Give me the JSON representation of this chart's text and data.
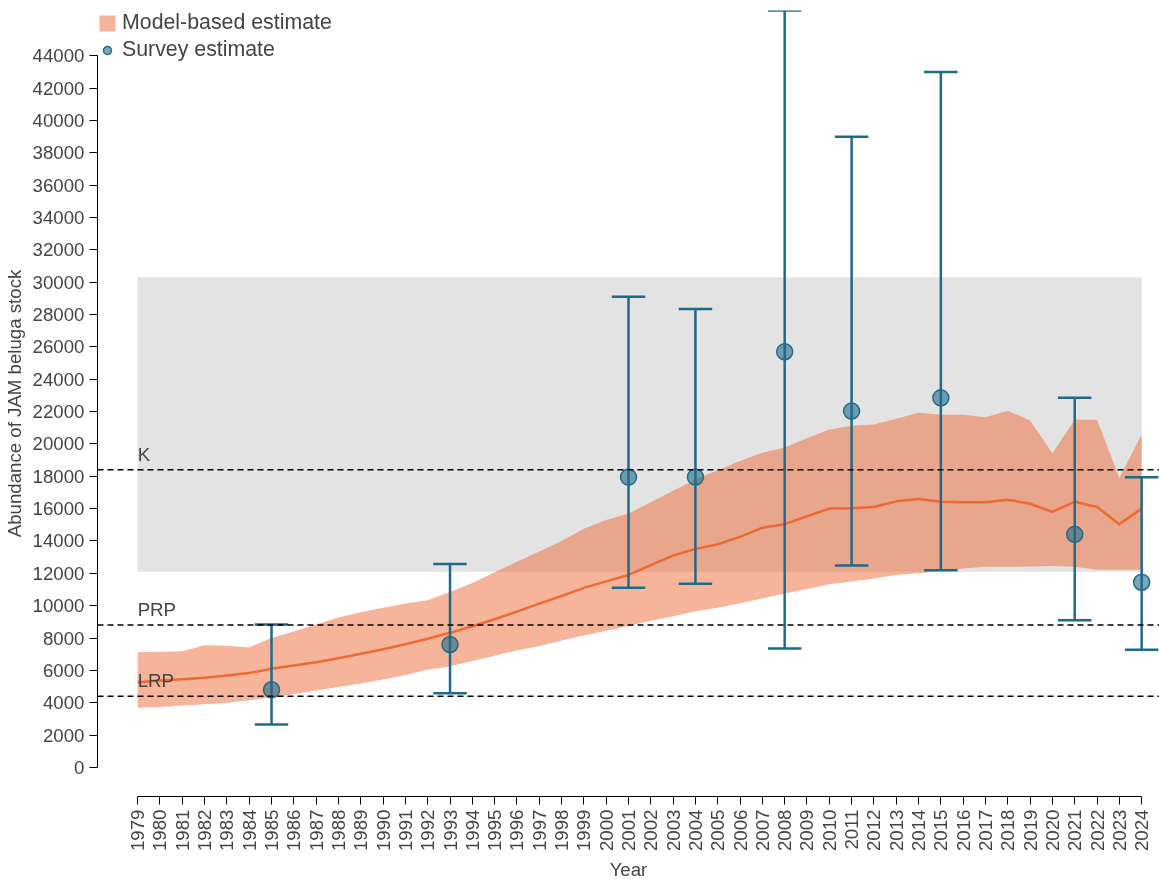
{
  "chart_data": {
    "type": "line",
    "xlabel": "Year",
    "ylabel": "Abundance of JAM beluga stock",
    "xlim": [
      1977.2,
      2024.8
    ],
    "ylim": [
      -1800,
      46800
    ],
    "xticks": [
      1979,
      1980,
      1981,
      1982,
      1983,
      1984,
      1985,
      1986,
      1987,
      1988,
      1989,
      1990,
      1991,
      1992,
      1993,
      1994,
      1995,
      1996,
      1997,
      1998,
      1999,
      2000,
      2001,
      2002,
      2003,
      2004,
      2005,
      2006,
      2007,
      2008,
      2009,
      2010,
      2011,
      2012,
      2013,
      2014,
      2015,
      2016,
      2017,
      2018,
      2019,
      2020,
      2021,
      2022,
      2023,
      2024
    ],
    "yticks": [
      0,
      2000,
      4000,
      6000,
      8000,
      10000,
      12000,
      14000,
      16000,
      18000,
      20000,
      22000,
      24000,
      26000,
      28000,
      30000,
      32000,
      34000,
      36000,
      38000,
      40000,
      42000,
      44000
    ],
    "grid": false,
    "legend": "top left",
    "bands": [
      {
        "axis": "y",
        "from": 12100,
        "to": 30300,
        "color": "#e3e3e3"
      }
    ],
    "ref_lines": [
      {
        "axis": "y",
        "value": 18400,
        "label": "K",
        "line_style": "dashed",
        "color": "#000000"
      },
      {
        "axis": "y",
        "value": 8800,
        "label": "PRP",
        "line_style": "dashed",
        "color": "#000000"
      },
      {
        "axis": "y",
        "value": 4400,
        "label": "LRP",
        "line_style": "dashed",
        "color": "#000000"
      }
    ],
    "series": [
      {
        "name": "Model-based estimate",
        "color": "#ee6a35",
        "line_style": "solid",
        "marker": "none",
        "x": [
          1979,
          1980,
          1981,
          1982,
          1983,
          1984,
          1985,
          1986,
          1987,
          1988,
          1989,
          1990,
          1991,
          1992,
          1993,
          1994,
          1995,
          1996,
          1997,
          1998,
          1999,
          2000,
          2001,
          2002,
          2003,
          2004,
          2005,
          2006,
          2007,
          2008,
          2009,
          2010,
          2011,
          2012,
          2013,
          2014,
          2015,
          2016,
          2017,
          2018,
          2019,
          2020,
          2021,
          2022,
          2023,
          2024
        ],
        "values": [
          5270,
          5380,
          5450,
          5550,
          5680,
          5830,
          6100,
          6300,
          6500,
          6750,
          7030,
          7300,
          7610,
          7950,
          8320,
          8730,
          9160,
          9630,
          10130,
          10600,
          11100,
          11500,
          11900,
          12500,
          13100,
          13500,
          13800,
          14250,
          14820,
          15040,
          15530,
          16000,
          16020,
          16100,
          16450,
          16600,
          16430,
          16400,
          16400,
          16550,
          16300,
          15800,
          16430,
          16100,
          15040,
          16000
        ],
        "lower": [
          3680,
          3740,
          3830,
          3900,
          4000,
          4150,
          4320,
          4540,
          4750,
          4970,
          5180,
          5440,
          5720,
          6040,
          6260,
          6580,
          6900,
          7230,
          7500,
          7850,
          8150,
          8450,
          8750,
          9070,
          9350,
          9650,
          9870,
          10150,
          10450,
          10750,
          11030,
          11330,
          11500,
          11680,
          11900,
          12000,
          12150,
          12300,
          12400,
          12400,
          12420,
          12450,
          12400,
          12220,
          12220,
          12220
        ],
        "upper": [
          7120,
          7150,
          7180,
          7550,
          7520,
          7420,
          8000,
          8400,
          8830,
          9270,
          9600,
          9870,
          10130,
          10340,
          10840,
          11400,
          12060,
          12710,
          13350,
          14000,
          14760,
          15300,
          15700,
          16400,
          17100,
          17800,
          18380,
          18950,
          19450,
          19780,
          20350,
          20900,
          21130,
          21200,
          21550,
          21930,
          21800,
          21800,
          21650,
          22050,
          21450,
          19430,
          21500,
          21500,
          17900,
          20580
        ]
      },
      {
        "type": "scatter",
        "name": "Survey estimate",
        "color": "#1f6a8a",
        "marker": "circle",
        "x": [
          1985,
          1993,
          2001,
          2004,
          2008,
          2011,
          2015,
          2021,
          2024
        ],
        "values": [
          4800,
          7600,
          17950,
          17950,
          25700,
          22030,
          22850,
          14410,
          11450
        ],
        "errors": [
          [
            2650,
            8840
          ],
          [
            4580,
            12580
          ],
          [
            11100,
            29100
          ],
          [
            11350,
            28350
          ],
          [
            7350,
            46800
          ],
          [
            12480,
            39000
          ],
          [
            12190,
            43000
          ],
          [
            9100,
            22850
          ],
          [
            7280,
            17940
          ]
        ]
      }
    ]
  }
}
